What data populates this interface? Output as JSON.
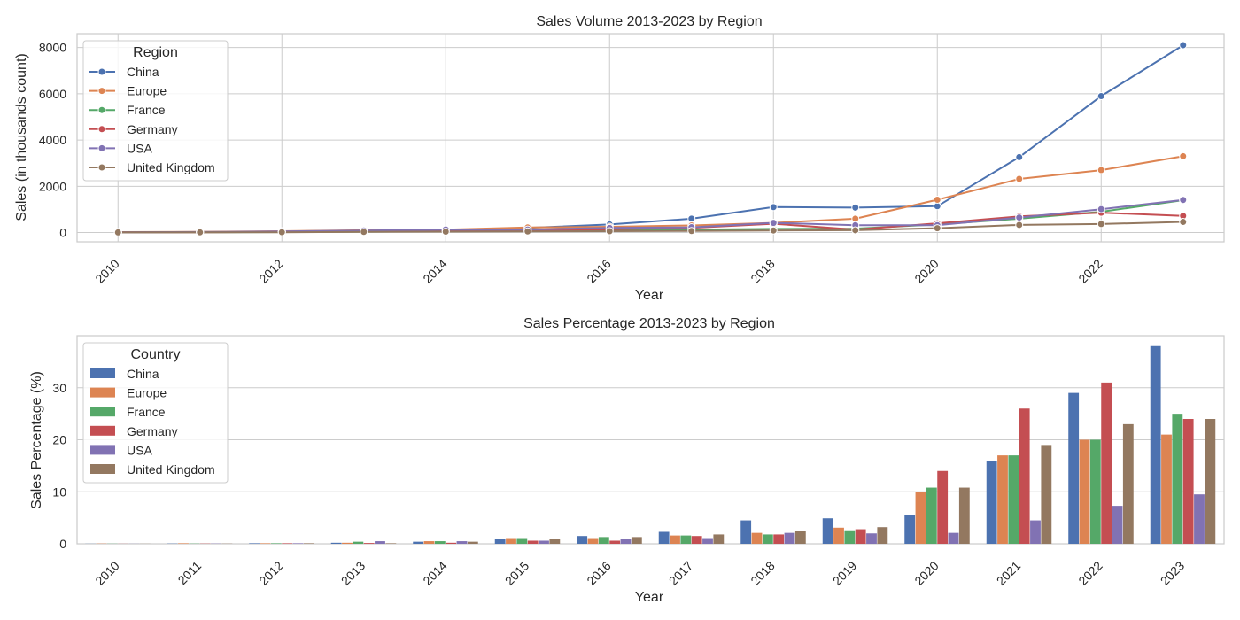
{
  "chart_data": [
    {
      "type": "line",
      "title": "Sales Volume 2013-2023 by Region",
      "xlabel": "Year",
      "ylabel": "Sales (in thousands count)",
      "xlim": [
        2009.5,
        2023.5
      ],
      "ylim": [
        -400,
        8600
      ],
      "xticks": [
        2010,
        2012,
        2014,
        2016,
        2018,
        2020,
        2022
      ],
      "yticks": [
        0,
        2000,
        4000,
        6000,
        8000
      ],
      "grid": true,
      "legend": {
        "title": "Region",
        "placement": "top-left"
      },
      "x": [
        2010,
        2011,
        2012,
        2013,
        2014,
        2015,
        2016,
        2017,
        2018,
        2019,
        2020,
        2021,
        2022,
        2023
      ],
      "series": [
        {
          "name": "China",
          "color": "#4c72b0",
          "values": [
            10,
            20,
            40,
            80,
            100,
            200,
            350,
            600,
            1100,
            1080,
            1140,
            3260,
            5900,
            8100
          ]
        },
        {
          "name": "Europe",
          "color": "#dd8452",
          "values": [
            20,
            30,
            60,
            100,
            130,
            220,
            250,
            310,
            420,
            600,
            1420,
            2320,
            2700,
            3300
          ]
        },
        {
          "name": "France",
          "color": "#55a868",
          "values": [
            5,
            10,
            20,
            35,
            50,
            80,
            110,
            130,
            160,
            170,
            350,
            600,
            900,
            1400
          ]
        },
        {
          "name": "Germany",
          "color": "#c44e52",
          "values": [
            10,
            15,
            30,
            40,
            60,
            100,
            140,
            200,
            380,
            130,
            400,
            700,
            860,
            720
          ]
        },
        {
          "name": "USA",
          "color": "#8172b3",
          "values": [
            15,
            25,
            50,
            90,
            130,
            130,
            200,
            230,
            420,
            320,
            320,
            650,
            1010,
            1410
          ]
        },
        {
          "name": "United Kingdom",
          "color": "#937860",
          "values": [
            5,
            10,
            15,
            30,
            40,
            50,
            60,
            70,
            90,
            100,
            190,
            330,
            370,
            460
          ]
        }
      ]
    },
    {
      "type": "bar",
      "title": "Sales Percentage 2013-2023 by Region",
      "xlabel": "Year",
      "ylabel": "Sales Percentage (%)",
      "ylim": [
        0,
        40
      ],
      "yticks": [
        0,
        10,
        20,
        30
      ],
      "grid": true,
      "legend": {
        "title": "Country",
        "placement": "top-left"
      },
      "categories": [
        "2010",
        "2011",
        "2012",
        "2013",
        "2014",
        "2015",
        "2016",
        "2017",
        "2018",
        "2019",
        "2020",
        "2021",
        "2022",
        "2023"
      ],
      "series": [
        {
          "name": "China",
          "color": "#4c72b0",
          "values": [
            0.02,
            0.05,
            0.1,
            0.2,
            0.4,
            1.0,
            1.5,
            2.3,
            4.5,
            4.9,
            5.5,
            16,
            29,
            38
          ]
        },
        {
          "name": "Europe",
          "color": "#dd8452",
          "values": [
            0.05,
            0.1,
            0.1,
            0.2,
            0.5,
            1.1,
            1.1,
            1.6,
            2.1,
            3.1,
            10,
            17,
            20,
            21
          ]
        },
        {
          "name": "France",
          "color": "#55a868",
          "values": [
            0.03,
            0.05,
            0.1,
            0.4,
            0.5,
            1.1,
            1.3,
            1.6,
            1.8,
            2.6,
            10.8,
            17,
            20,
            25
          ]
        },
        {
          "name": "Germany",
          "color": "#c44e52",
          "values": [
            0.02,
            0.05,
            0.1,
            0.15,
            0.2,
            0.6,
            0.6,
            1.5,
            1.8,
            2.8,
            14,
            26,
            31,
            24
          ]
        },
        {
          "name": "USA",
          "color": "#8172b3",
          "values": [
            0.02,
            0.05,
            0.1,
            0.5,
            0.5,
            0.6,
            1.0,
            1.1,
            2.1,
            2.0,
            2.1,
            4.5,
            7.3,
            9.5
          ]
        },
        {
          "name": "United Kingdom",
          "color": "#937860",
          "values": [
            0.02,
            0.04,
            0.1,
            0.1,
            0.4,
            0.9,
            1.3,
            1.8,
            2.5,
            3.2,
            10.8,
            19,
            23,
            24
          ]
        }
      ]
    }
  ]
}
